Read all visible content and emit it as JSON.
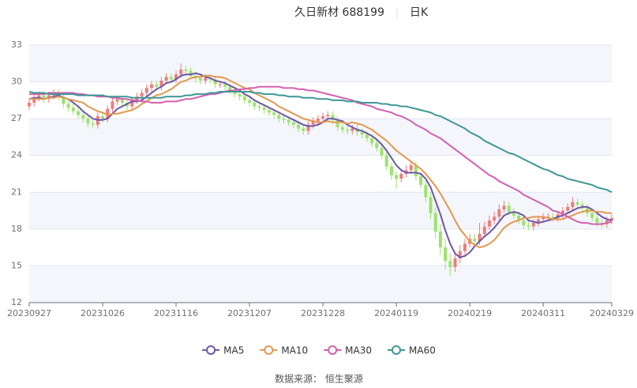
{
  "chart_data": {
    "type": "candlestick",
    "title": "久日新材 688199",
    "period": "日K",
    "source": "数据来源： 恒生聚源",
    "categories": [
      "20230927",
      null,
      null,
      null,
      null,
      null,
      null,
      null,
      null,
      null,
      null,
      null,
      null,
      null,
      null,
      "20231026",
      null,
      null,
      null,
      null,
      null,
      null,
      null,
      null,
      null,
      null,
      null,
      null,
      null,
      null,
      "20231116",
      null,
      null,
      null,
      null,
      null,
      null,
      null,
      null,
      null,
      null,
      null,
      null,
      null,
      null,
      "20231207",
      null,
      null,
      null,
      null,
      null,
      null,
      null,
      null,
      null,
      null,
      null,
      null,
      null,
      null,
      "20231228",
      null,
      null,
      null,
      null,
      null,
      null,
      null,
      null,
      null,
      null,
      null,
      null,
      null,
      null,
      "20240119",
      null,
      null,
      null,
      null,
      null,
      null,
      null,
      null,
      null,
      null,
      null,
      null,
      null,
      null,
      "20240219",
      null,
      null,
      null,
      null,
      null,
      null,
      null,
      null,
      null,
      null,
      null,
      null,
      null,
      null,
      "20240311",
      null,
      null,
      null,
      null,
      null,
      null,
      null,
      null,
      null,
      null,
      null,
      null,
      null,
      "20240329"
    ],
    "open": [
      28.0,
      28.3,
      28.7,
      28.9,
      28.6,
      28.9,
      29.1,
      28.8,
      28.2,
      27.9,
      27.6,
      27.3,
      27.0,
      26.6,
      26.5,
      27.2,
      27.0,
      27.8,
      28.4,
      28.6,
      28.3,
      28.0,
      28.5,
      28.8,
      29.1,
      29.5,
      29.8,
      29.6,
      30.1,
      30.4,
      30.2,
      30.6,
      31.0,
      30.9,
      30.5,
      30.3,
      30.1,
      30.3,
      30.2,
      29.8,
      29.8,
      29.6,
      29.3,
      29.0,
      28.8,
      28.5,
      28.3,
      28.0,
      27.9,
      27.7,
      27.5,
      27.3,
      27.0,
      26.9,
      26.7,
      26.5,
      26.2,
      26.0,
      26.5,
      26.8,
      27.0,
      27.2,
      27.3,
      26.9,
      26.3,
      26.1,
      26.0,
      26.2,
      25.9,
      25.7,
      25.4,
      25.0,
      24.6,
      24.0,
      23.1,
      22.4,
      22.1,
      22.5,
      22.8,
      23.2,
      22.3,
      21.6,
      20.6,
      19.3,
      17.8,
      16.5,
      15.4,
      14.9,
      15.6,
      16.2,
      16.8,
      17.2,
      17.0,
      17.6,
      18.2,
      18.7,
      19.0,
      19.6,
      19.9,
      19.4,
      19.1,
      18.7,
      18.3,
      18.2,
      18.5,
      18.8,
      19.0,
      19.0,
      18.9,
      19.2,
      19.5,
      19.8,
      20.2,
      20.0,
      19.7,
      19.3,
      18.9,
      18.5,
      18.4,
      18.7
    ],
    "high": [
      28.6,
      29.0,
      29.2,
      29.2,
      29.2,
      29.4,
      29.4,
      29.1,
      28.5,
      28.2,
      27.9,
      27.6,
      27.3,
      26.9,
      27.5,
      27.5,
      28.1,
      28.7,
      28.9,
      28.9,
      28.6,
      28.8,
      29.1,
      29.4,
      29.8,
      30.1,
      30.1,
      30.4,
      30.7,
      30.7,
      30.9,
      31.5,
      31.3,
      31.2,
      30.8,
      30.6,
      30.6,
      30.6,
      30.5,
      30.1,
      30.1,
      29.9,
      29.6,
      29.3,
      29.1,
      28.8,
      28.6,
      28.3,
      28.2,
      28.0,
      27.8,
      27.6,
      27.3,
      27.2,
      27.0,
      26.8,
      26.5,
      26.8,
      27.1,
      27.3,
      27.5,
      27.6,
      27.6,
      27.2,
      26.6,
      26.4,
      26.5,
      26.5,
      26.2,
      26.0,
      25.7,
      25.3,
      24.9,
      24.3,
      23.4,
      22.7,
      22.9,
      23.2,
      23.6,
      23.5,
      22.6,
      21.9,
      21.0,
      19.8,
      18.4,
      17.2,
      16.0,
      16.2,
      16.7,
      17.2,
      17.6,
      17.6,
      18.5,
      18.6,
      19.1,
      19.4,
      20.0,
      20.3,
      20.2,
      19.7,
      19.4,
      19.0,
      18.6,
      18.8,
      19.1,
      19.3,
      19.3,
      19.3,
      19.5,
      19.8,
      20.1,
      20.6,
      20.5,
      20.3,
      20.0,
      19.6,
      19.2,
      18.8,
      19.0,
      19.2
    ],
    "low": [
      27.7,
      28.0,
      28.4,
      28.3,
      28.3,
      28.6,
      28.5,
      27.9,
      27.6,
      27.3,
      27.0,
      26.7,
      26.3,
      26.2,
      26.2,
      26.7,
      26.7,
      27.5,
      28.1,
      28.0,
      27.7,
      27.7,
      28.2,
      28.5,
      28.8,
      29.2,
      29.3,
      29.3,
      29.8,
      29.9,
      29.9,
      30.3,
      30.6,
      30.2,
      30.0,
      29.8,
      29.8,
      29.9,
      29.5,
      29.5,
      29.3,
      29.0,
      28.7,
      28.5,
      28.2,
      28.0,
      27.7,
      27.6,
      27.4,
      27.2,
      27.0,
      26.7,
      26.6,
      26.4,
      26.2,
      25.9,
      25.7,
      25.7,
      26.2,
      26.5,
      26.7,
      26.9,
      26.6,
      26.0,
      25.8,
      25.7,
      25.7,
      25.6,
      25.4,
      25.1,
      24.7,
      24.3,
      23.7,
      22.8,
      22.0,
      21.3,
      21.8,
      22.2,
      22.5,
      22.0,
      21.3,
      20.2,
      18.8,
      17.2,
      15.9,
      14.7,
      14.2,
      14.5,
      15.2,
      15.8,
      16.5,
      16.7,
      16.7,
      17.3,
      17.9,
      18.4,
      18.7,
      19.3,
      19.1,
      18.8,
      18.4,
      18.0,
      17.9,
      17.9,
      18.2,
      18.5,
      18.7,
      18.6,
      18.6,
      18.9,
      19.2,
      19.5,
      19.7,
      19.4,
      19.0,
      18.6,
      18.2,
      18.1,
      18.1,
      18.4
    ],
    "close": [
      28.3,
      28.7,
      28.9,
      28.6,
      28.9,
      29.1,
      28.8,
      28.2,
      27.9,
      27.6,
      27.3,
      27.0,
      26.6,
      26.5,
      27.2,
      27.0,
      27.8,
      28.4,
      28.6,
      28.3,
      28.0,
      28.5,
      28.8,
      29.1,
      29.5,
      29.8,
      29.6,
      30.1,
      30.4,
      30.2,
      30.6,
      31.0,
      30.9,
      30.5,
      30.3,
      30.1,
      30.3,
      30.2,
      29.8,
      29.8,
      29.6,
      29.3,
      29.0,
      28.8,
      28.5,
      28.3,
      28.0,
      27.9,
      27.7,
      27.5,
      27.3,
      27.0,
      26.9,
      26.7,
      26.5,
      26.2,
      26.0,
      26.5,
      26.8,
      27.0,
      27.2,
      27.3,
      26.9,
      26.3,
      26.1,
      26.0,
      26.2,
      25.9,
      25.7,
      25.4,
      25.0,
      24.6,
      24.0,
      23.1,
      22.4,
      22.1,
      22.5,
      22.8,
      23.2,
      22.3,
      21.6,
      20.6,
      19.3,
      17.8,
      16.5,
      15.4,
      14.9,
      15.6,
      16.2,
      16.8,
      17.2,
      17.0,
      17.6,
      18.2,
      18.7,
      19.0,
      19.6,
      19.9,
      19.4,
      19.1,
      18.7,
      18.3,
      18.2,
      18.5,
      18.8,
      19.0,
      19.0,
      18.9,
      19.2,
      19.5,
      19.8,
      20.2,
      20.0,
      19.7,
      19.3,
      18.9,
      18.5,
      18.4,
      18.7,
      18.9
    ],
    "up_color": "#f07c7c",
    "down_color": "#9be36b",
    "series": [
      {
        "name": "MA5",
        "color": "#6e57a8",
        "values": [
          28.6,
          28.7,
          28.7,
          28.6,
          28.7,
          28.8,
          28.9,
          28.7,
          28.6,
          28.3,
          28.0,
          27.6,
          27.3,
          27.0,
          26.9,
          26.9,
          27.0,
          27.4,
          27.8,
          28.0,
          28.2,
          28.4,
          28.4,
          28.5,
          28.8,
          29.1,
          29.4,
          29.6,
          29.9,
          30.0,
          30.2,
          30.5,
          30.6,
          30.6,
          30.7,
          30.6,
          30.4,
          30.3,
          30.1,
          30.0,
          29.9,
          29.7,
          29.5,
          29.3,
          29.0,
          28.8,
          28.5,
          28.3,
          28.1,
          27.9,
          27.7,
          27.5,
          27.3,
          27.1,
          26.9,
          26.7,
          26.5,
          26.4,
          26.4,
          26.5,
          26.7,
          27.0,
          27.0,
          26.9,
          26.8,
          26.5,
          26.3,
          26.1,
          26.0,
          25.8,
          25.6,
          25.3,
          24.9,
          24.4,
          23.8,
          23.2,
          22.8,
          22.6,
          22.6,
          22.6,
          22.5,
          22.1,
          21.4,
          20.3,
          19.2,
          17.9,
          16.8,
          16.0,
          15.7,
          15.8,
          16.1,
          16.6,
          17.0,
          17.4,
          17.7,
          18.1,
          18.6,
          19.1,
          19.3,
          19.4,
          19.3,
          19.1,
          18.7,
          18.6,
          18.5,
          18.6,
          18.7,
          18.8,
          19.0,
          19.1,
          19.3,
          19.5,
          19.7,
          19.8,
          19.8,
          19.6,
          19.3,
          19.0,
          18.8,
          18.7
        ]
      },
      {
        "name": "MA10",
        "color": "#e39850",
        "values": [
          28.6,
          28.6,
          28.6,
          28.6,
          28.7,
          28.7,
          28.8,
          28.7,
          28.6,
          28.5,
          28.4,
          28.3,
          28.0,
          27.8,
          27.6,
          27.5,
          27.3,
          27.4,
          27.4,
          27.5,
          27.6,
          27.7,
          27.9,
          28.2,
          28.4,
          28.7,
          28.9,
          29.0,
          29.2,
          29.4,
          29.7,
          30.0,
          30.1,
          30.3,
          30.4,
          30.4,
          30.5,
          30.5,
          30.4,
          30.4,
          30.3,
          30.1,
          29.9,
          29.7,
          29.5,
          29.4,
          29.1,
          28.9,
          28.7,
          28.5,
          28.3,
          28.0,
          27.8,
          27.6,
          27.4,
          27.2,
          27.0,
          26.9,
          26.8,
          26.7,
          26.7,
          26.8,
          26.7,
          26.7,
          26.7,
          26.6,
          26.7,
          26.6,
          26.5,
          26.3,
          26.1,
          25.8,
          25.5,
          25.2,
          24.8,
          24.4,
          24.1,
          23.8,
          23.5,
          23.2,
          22.9,
          22.5,
          22.0,
          21.5,
          20.9,
          20.2,
          19.5,
          18.7,
          18.0,
          17.5,
          17.0,
          16.7,
          16.5,
          16.6,
          16.8,
          17.1,
          17.6,
          18.1,
          18.4,
          18.6,
          18.7,
          18.9,
          18.9,
          19.0,
          19.0,
          19.0,
          18.9,
          18.8,
          18.8,
          18.8,
          19.0,
          19.1,
          19.3,
          19.4,
          19.5,
          19.5,
          19.4,
          19.4,
          19.3,
          19.3
        ]
      },
      {
        "name": "MA30",
        "color": "#d65fae",
        "values": [
          29.0,
          29.0,
          29.0,
          29.0,
          29.1,
          29.1,
          29.1,
          29.1,
          29.1,
          29.1,
          29.0,
          29.0,
          28.9,
          28.9,
          28.8,
          28.8,
          28.8,
          28.7,
          28.7,
          28.6,
          28.6,
          28.5,
          28.5,
          28.4,
          28.4,
          28.3,
          28.3,
          28.3,
          28.4,
          28.4,
          28.4,
          28.5,
          28.6,
          28.6,
          28.7,
          28.8,
          28.9,
          29.0,
          29.0,
          29.1,
          29.2,
          29.3,
          29.3,
          29.4,
          29.4,
          29.5,
          29.5,
          29.6,
          29.6,
          29.6,
          29.6,
          29.6,
          29.5,
          29.5,
          29.5,
          29.4,
          29.4,
          29.3,
          29.3,
          29.2,
          29.1,
          29.0,
          28.9,
          28.8,
          28.7,
          28.6,
          28.5,
          28.3,
          28.2,
          28.1,
          28.0,
          27.8,
          27.7,
          27.6,
          27.5,
          27.3,
          27.2,
          27.0,
          26.8,
          26.5,
          26.3,
          26.1,
          25.8,
          25.6,
          25.4,
          25.1,
          24.8,
          24.5,
          24.2,
          23.9,
          23.6,
          23.3,
          23.0,
          22.7,
          22.4,
          22.2,
          21.9,
          21.7,
          21.5,
          21.3,
          21.1,
          20.8,
          20.6,
          20.4,
          20.2,
          20.0,
          19.8,
          19.5,
          19.4,
          19.2,
          19.0,
          18.8,
          18.6,
          18.5,
          18.5,
          18.4,
          18.4,
          18.4,
          18.5,
          18.6
        ]
      },
      {
        "name": "MA60",
        "color": "#3e9797",
        "values": [
          29.2,
          29.1,
          29.1,
          29.1,
          29.0,
          29.0,
          29.0,
          29.0,
          29.0,
          29.0,
          28.9,
          28.9,
          28.9,
          28.9,
          28.9,
          28.9,
          28.8,
          28.8,
          28.8,
          28.8,
          28.8,
          28.7,
          28.7,
          28.7,
          28.7,
          28.7,
          28.7,
          28.7,
          28.8,
          28.8,
          28.8,
          28.8,
          28.9,
          28.9,
          29.0,
          29.0,
          29.0,
          29.1,
          29.1,
          29.2,
          29.2,
          29.2,
          29.2,
          29.2,
          29.2,
          29.2,
          29.1,
          29.1,
          29.0,
          29.0,
          29.0,
          28.9,
          28.9,
          28.8,
          28.8,
          28.8,
          28.7,
          28.7,
          28.7,
          28.6,
          28.6,
          28.6,
          28.5,
          28.5,
          28.5,
          28.4,
          28.4,
          28.4,
          28.3,
          28.3,
          28.3,
          28.3,
          28.2,
          28.2,
          28.1,
          28.1,
          28.0,
          28.0,
          27.9,
          27.8,
          27.7,
          27.6,
          27.5,
          27.3,
          27.2,
          27.0,
          26.8,
          26.6,
          26.4,
          26.2,
          25.9,
          25.7,
          25.5,
          25.2,
          25.0,
          24.8,
          24.6,
          24.4,
          24.2,
          24.1,
          23.9,
          23.7,
          23.5,
          23.3,
          23.1,
          22.9,
          22.8,
          22.6,
          22.4,
          22.3,
          22.1,
          22.0,
          21.9,
          21.8,
          21.7,
          21.6,
          21.4,
          21.3,
          21.2,
          21.0
        ]
      }
    ],
    "ylim": [
      12,
      33
    ],
    "yticks": [
      12,
      15,
      18,
      21,
      24,
      27,
      30,
      33
    ],
    "grid": true,
    "legend": "bottom"
  }
}
